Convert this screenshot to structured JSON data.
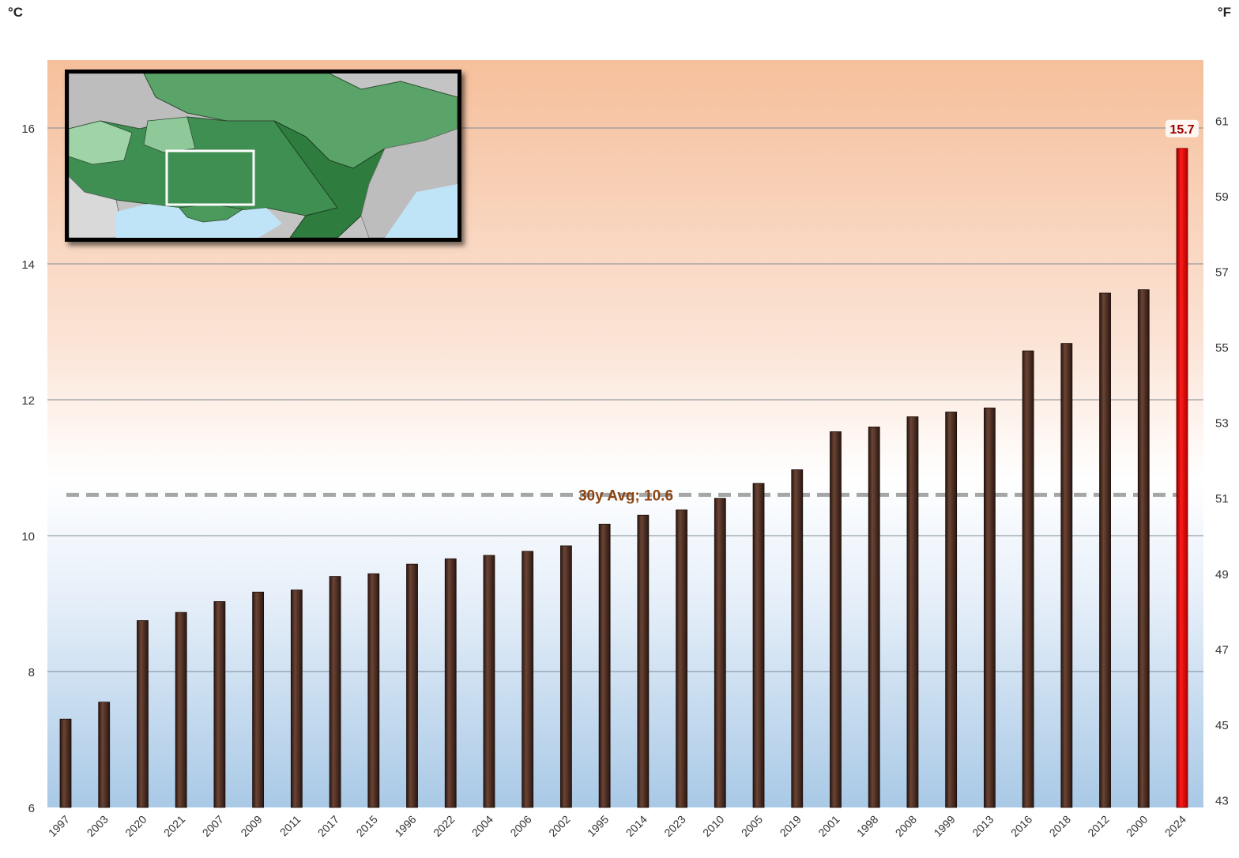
{
  "unit_left": "°C",
  "unit_right": "°F",
  "colors": {
    "bar": "#4a2c22",
    "bar_highlight": "#e00000",
    "avg_line": "#a6a6a6",
    "avg_label": "#8b4513",
    "highlight_label": "#9b0000",
    "bg_top": "#f5bf9b",
    "bg_bottom": "#a9c9e6",
    "map_green_dark": "#2e7d3e",
    "map_green_light": "#8fc99a",
    "map_gray": "#b9b9b9",
    "map_water": "#bfe3f7"
  },
  "map_inset": {
    "icon": "regional-map-thumbnail",
    "highlight_box": "white-rectangle"
  },
  "chart_data": {
    "type": "bar",
    "categories": [
      "1997",
      "2003",
      "2020",
      "2021",
      "2007",
      "2009",
      "2011",
      "2017",
      "2015",
      "1996",
      "2022",
      "2004",
      "2006",
      "2002",
      "1995",
      "2014",
      "2023",
      "2010",
      "2005",
      "2019",
      "2001",
      "1998",
      "2008",
      "1999",
      "2013",
      "2016",
      "2018",
      "2012",
      "2000",
      "2024"
    ],
    "values": [
      7.3,
      7.55,
      8.75,
      8.87,
      9.03,
      9.17,
      9.2,
      9.4,
      9.44,
      9.58,
      9.66,
      9.71,
      9.77,
      9.85,
      10.17,
      10.3,
      10.38,
      10.55,
      10.77,
      10.97,
      11.53,
      11.6,
      11.75,
      11.82,
      11.88,
      12.72,
      12.83,
      13.57,
      13.62,
      15.7
    ],
    "highlight_index": 29,
    "highlight_label": "15.7",
    "average": {
      "value": 10.6,
      "label": "30y Avg; 10.6"
    },
    "ylim": [
      6,
      17
    ],
    "yticks": [
      6,
      8,
      10,
      12,
      14,
      16
    ],
    "yticks_right": [
      {
        "label": "43",
        "value": 6.111
      },
      {
        "label": "45",
        "value": 7.222
      },
      {
        "label": "47",
        "value": 8.333
      },
      {
        "label": "49",
        "value": 9.444
      },
      {
        "label": "51",
        "value": 10.556
      },
      {
        "label": "53",
        "value": 11.667
      },
      {
        "label": "55",
        "value": 12.778
      },
      {
        "label": "57",
        "value": 13.889
      },
      {
        "label": "59",
        "value": 15.0
      },
      {
        "label": "61",
        "value": 16.111
      }
    ],
    "grid": true
  }
}
